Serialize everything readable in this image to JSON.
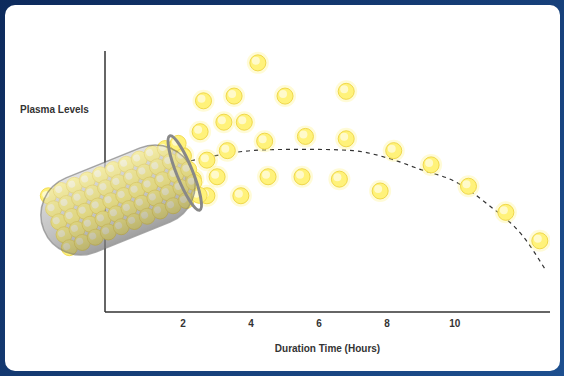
{
  "chart_data": {
    "type": "line",
    "x_label": "Duration Time (Hours)",
    "y_label": "Plasma Levels",
    "xlim": [
      -0.3,
      12.8
    ],
    "xticks": [
      2,
      4,
      6,
      8,
      10
    ],
    "ylim": [
      0,
      11
    ],
    "tick_labels": "x",
    "series": [
      {
        "type": "line",
        "line_style": "dashed",
        "color": "#333333",
        "x": [
          2,
          3,
          4,
          5,
          6,
          7,
          8,
          9,
          10,
          11,
          12,
          12.7
        ],
        "values": [
          6.3,
          6.6,
          6.8,
          6.85,
          6.85,
          6.8,
          6.5,
          6.0,
          5.5,
          4.5,
          3.2,
          1.7
        ]
      },
      {
        "type": "scatter",
        "marker": "circle",
        "color": "#fff27a",
        "x": [
          4.2,
          2.6,
          3.5,
          5.0,
          6.8,
          2.5,
          3.2,
          3.8,
          2.0,
          2.7,
          3.3,
          4.4,
          5.6,
          6.8,
          8.2,
          9.3,
          10.4,
          11.5,
          12.5,
          3.0,
          3.7,
          2.7,
          4.5,
          5.5,
          6.6,
          7.8,
          2.3
        ],
        "values": [
          10.5,
          8.9,
          9.1,
          9.1,
          9.3,
          7.6,
          8.0,
          8.0,
          6.6,
          6.4,
          6.8,
          7.2,
          7.4,
          7.3,
          6.8,
          6.2,
          5.3,
          4.2,
          3.0,
          5.7,
          4.9,
          4.9,
          5.7,
          5.7,
          5.6,
          5.1,
          5.6
        ]
      }
    ]
  }
}
